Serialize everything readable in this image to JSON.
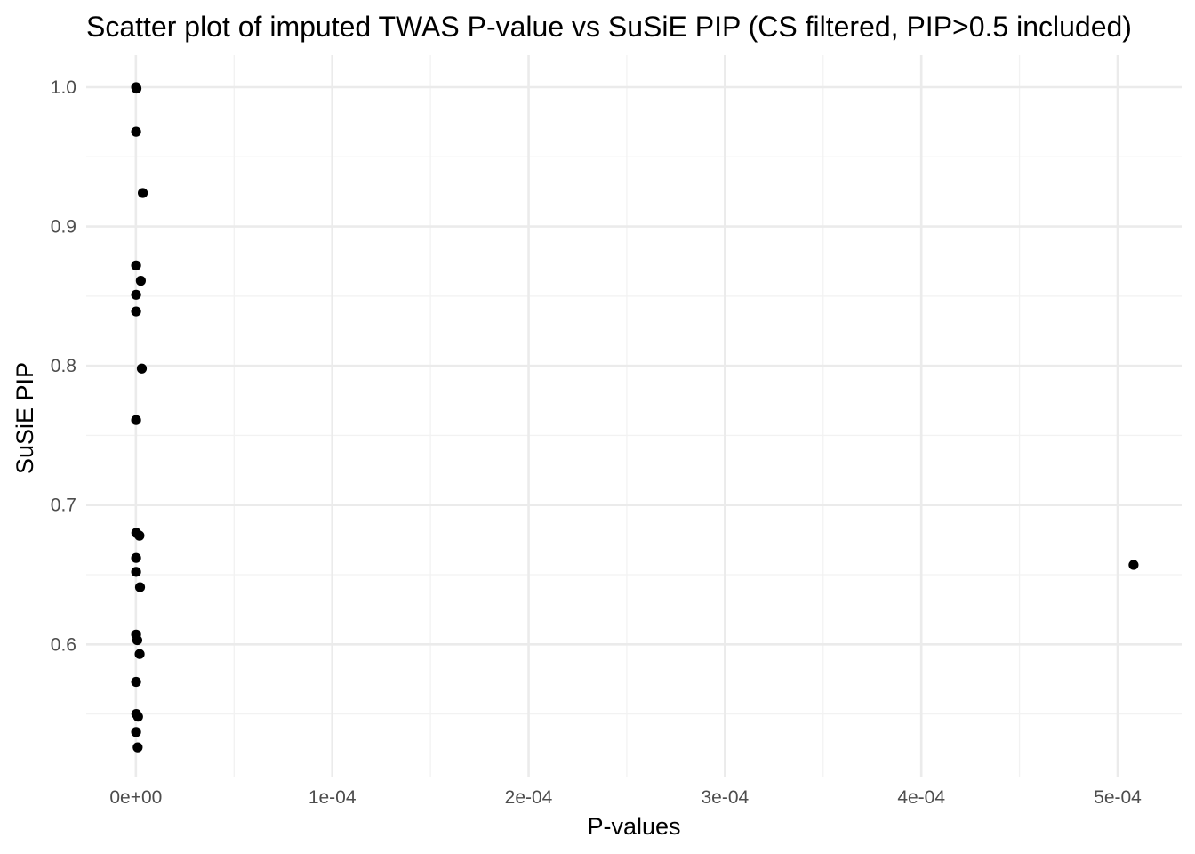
{
  "chart_data": {
    "type": "scatter",
    "title": "Scatter plot of imputed TWAS P-value vs SuSiE PIP (CS filtered, PIP>0.5 included)",
    "xlabel": "P-values",
    "ylabel": "SuSiE PIP",
    "xlim": [
      -2.53e-05,
      0.0005326
    ],
    "ylim": [
      0.505,
      1.023
    ],
    "x_ticks": [
      0,
      0.0001,
      0.0002,
      0.0003,
      0.0004,
      0.0005
    ],
    "x_tick_labels": [
      "0e+00",
      "1e-04",
      "2e-04",
      "3e-04",
      "4e-04",
      "5e-04"
    ],
    "y_ticks": [
      0.6,
      0.7,
      0.8,
      0.9,
      1.0
    ],
    "y_tick_labels": [
      "0.6",
      "0.7",
      "0.8",
      "0.9",
      "1.0"
    ],
    "grid": true,
    "legend": "none",
    "point_color": "#000000",
    "points": [
      {
        "x": 1e-07,
        "y": 1.0
      },
      {
        "x": 3e-07,
        "y": 0.999
      },
      {
        "x": 1e-07,
        "y": 0.968
      },
      {
        "x": 3.5e-06,
        "y": 0.924
      },
      {
        "x": 1e-07,
        "y": 0.872
      },
      {
        "x": 2.5e-06,
        "y": 0.861
      },
      {
        "x": 1e-07,
        "y": 0.851
      },
      {
        "x": 1e-07,
        "y": 0.839
      },
      {
        "x": 3e-06,
        "y": 0.798
      },
      {
        "x": 1e-07,
        "y": 0.761
      },
      {
        "x": 2e-07,
        "y": 0.68
      },
      {
        "x": 1.8e-06,
        "y": 0.678
      },
      {
        "x": 1e-07,
        "y": 0.662
      },
      {
        "x": 1e-07,
        "y": 0.652
      },
      {
        "x": 2.1e-06,
        "y": 0.641
      },
      {
        "x": 1e-07,
        "y": 0.607
      },
      {
        "x": 7e-07,
        "y": 0.603
      },
      {
        "x": 1.9e-06,
        "y": 0.593
      },
      {
        "x": 1e-07,
        "y": 0.573
      },
      {
        "x": 2e-07,
        "y": 0.55
      },
      {
        "x": 1.1e-06,
        "y": 0.548
      },
      {
        "x": 1e-07,
        "y": 0.537
      },
      {
        "x": 9e-07,
        "y": 0.526
      },
      {
        "x": 0.0005081,
        "y": 0.657
      }
    ]
  }
}
